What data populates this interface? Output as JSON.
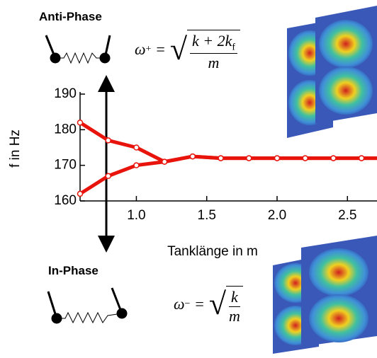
{
  "chart_data": {
    "type": "line",
    "x_label": "Tanklänge in m",
    "y_label": "f in Hz",
    "x": [
      0.6,
      0.8,
      1.0,
      1.2,
      1.4,
      1.6,
      1.8,
      2.0,
      2.2,
      2.4,
      2.6
    ],
    "series": [
      {
        "color": "#e8140c",
        "values": [
          182,
          177,
          175,
          171,
          172.5,
          172,
          172,
          172,
          172,
          172,
          172
        ]
      },
      {
        "color": "#e8140c",
        "values": [
          162,
          167,
          170,
          171,
          172.5,
          172,
          172,
          172,
          172,
          172,
          172
        ]
      }
    ],
    "xlim": [
      0.6,
      2.7
    ],
    "ylim": [
      160,
      190
    ],
    "xticks": [
      {
        "value": 1,
        "label": "1.0"
      },
      {
        "value": 1.5,
        "label": "1.5"
      },
      {
        "value": 2,
        "label": "2.0"
      },
      {
        "value": 2.5,
        "label": "2.5"
      }
    ],
    "yticks": [
      160,
      170,
      180,
      190
    ],
    "grid": false
  },
  "annotations": {
    "anti_phase": {
      "label": "Anti-Phase",
      "symbol": "ω",
      "sub": "+",
      "numerator": "k + 2k",
      "numerator_sub": "f",
      "denominator": "m"
    },
    "in_phase": {
      "label": "In-Phase",
      "symbol": "ω",
      "sub": "−",
      "numerator": "k",
      "denominator": "m"
    }
  }
}
